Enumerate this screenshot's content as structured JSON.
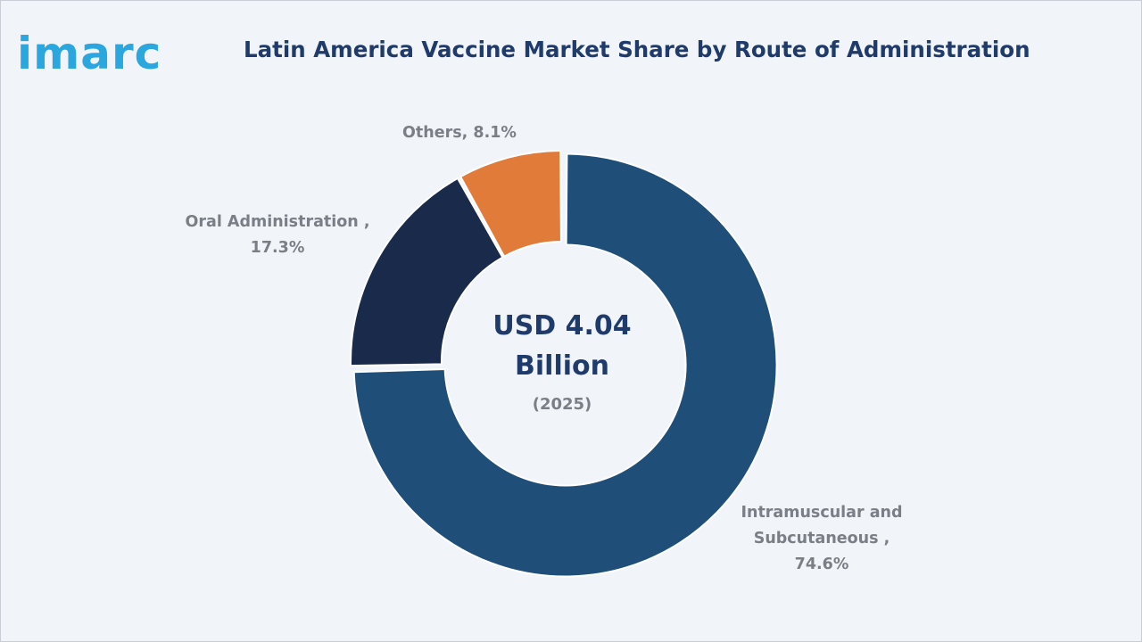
{
  "brand": {
    "logo_text": "imarc",
    "logo_color": "#2aa7df"
  },
  "chart_data": {
    "type": "pie",
    "title": "Latin America Vaccine Market Share by Route of Administration",
    "center_label": {
      "line1": "USD 4.04",
      "line2": "Billion",
      "year": "(2025)"
    },
    "slices": [
      {
        "category": "Intramuscular and Subcutaneous",
        "value": 74.6,
        "color": "#1f4e79",
        "label_lines": [
          "Intramuscular and",
          "Subcutaneous ,",
          "74.6%"
        ]
      },
      {
        "category": "Oral Administration",
        "value": 17.3,
        "color": "#1a2a4a",
        "label_lines": [
          "Oral Administration ,",
          "17.3%"
        ]
      },
      {
        "category": "Others",
        "value": 8.1,
        "color": "#e07b39",
        "label_lines": [
          "Others, 8.1%"
        ]
      }
    ]
  }
}
